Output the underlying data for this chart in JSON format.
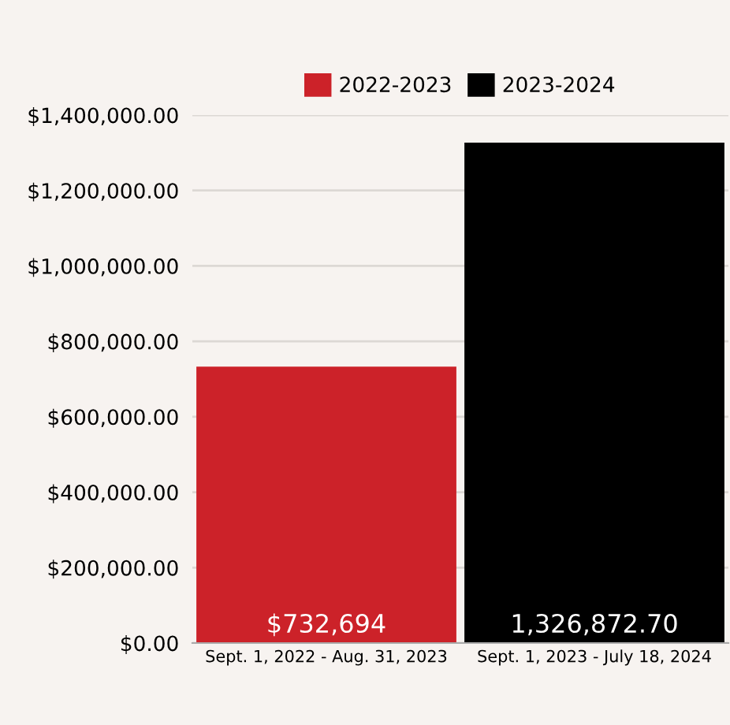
{
  "chart_data": {
    "type": "bar",
    "categories": [
      "Sept. 1, 2022 - Aug. 31, 2023",
      "Sept. 1, 2023 - July 18, 2024"
    ],
    "series": [
      {
        "name": "2022-2023",
        "color": "#cc2229",
        "values": [
          732694,
          null
        ],
        "value_labels": [
          "$732,694",
          null
        ]
      },
      {
        "name": "2023-2024",
        "color": "#000000",
        "values": [
          null,
          1326872.7
        ],
        "value_labels": [
          null,
          "1,326,872.70"
        ]
      }
    ],
    "ylim": [
      0,
      1400000
    ],
    "yticks": [
      {
        "value": 0,
        "label": "$0.00"
      },
      {
        "value": 200000,
        "label": "$200,000.00"
      },
      {
        "value": 400000,
        "label": "$400,000.00"
      },
      {
        "value": 600000,
        "label": "$600,000.00"
      },
      {
        "value": 800000,
        "label": "$800,000.00"
      },
      {
        "value": 1000000,
        "label": "$1,000,000.00"
      },
      {
        "value": 1200000,
        "label": "$1,200,000.00"
      },
      {
        "value": 1400000,
        "label": "$1,400,000.00"
      }
    ],
    "grid": "y",
    "legend": "top"
  }
}
